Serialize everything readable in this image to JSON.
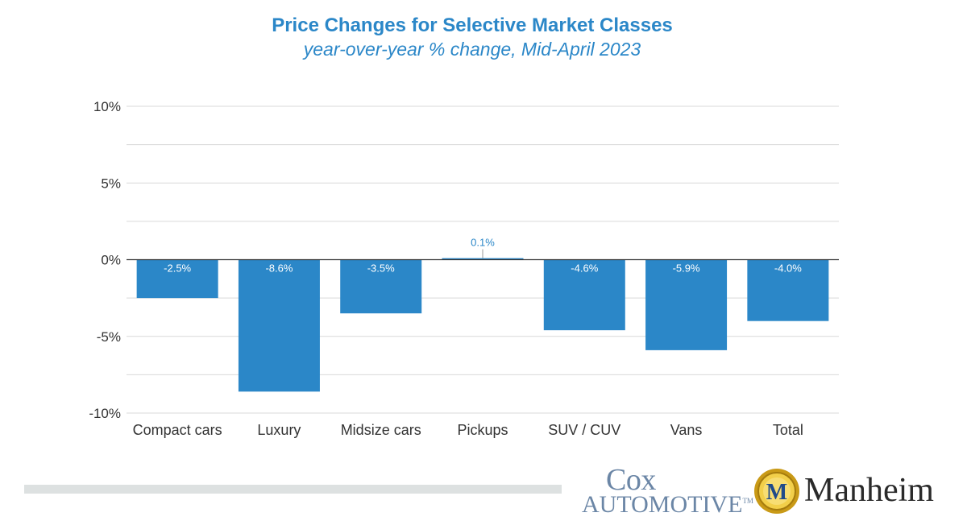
{
  "chart_data": {
    "type": "bar",
    "title": "Price Changes for Selective Market Classes",
    "subtitle": "year-over-year % change, Mid-April 2023",
    "categories": [
      "Compact cars",
      "Luxury",
      "Midsize cars",
      "Pickups",
      "SUV / CUV",
      "Vans",
      "Total"
    ],
    "values": [
      -2.5,
      -8.6,
      -3.5,
      0.1,
      -4.6,
      -5.9,
      -4.0
    ],
    "data_labels": [
      "-2.5%",
      "-8.6%",
      "-3.5%",
      "0.1%",
      "-4.6%",
      "-5.9%",
      "-4.0%"
    ],
    "ylim": [
      -10,
      10
    ],
    "yticks": [
      10,
      5,
      0,
      -5,
      -10
    ],
    "ytick_labels": [
      "10%",
      "5%",
      "0%",
      "-5%",
      "-10%"
    ],
    "grid": true,
    "bar_color": "#2b87c8"
  },
  "logos": {
    "cox_top": "Cox",
    "cox_bottom": "Automotive",
    "cox_tm": "TM",
    "manheim_initial": "M",
    "manheim": "Manheim"
  }
}
